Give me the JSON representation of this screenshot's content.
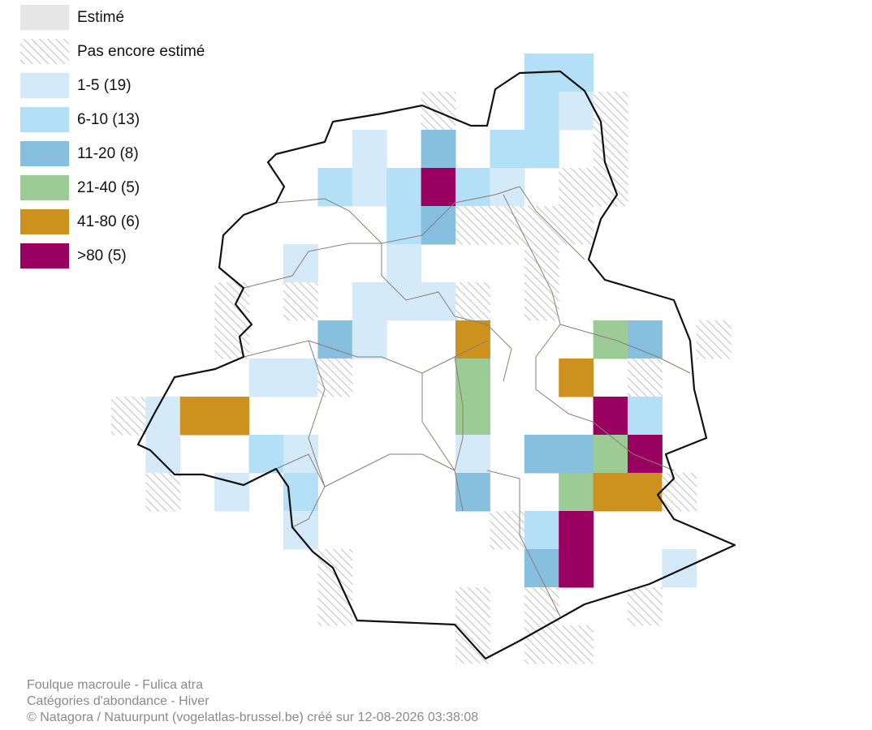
{
  "legend": {
    "items": [
      "Estimé",
      "Pas encore estimé",
      "1-5 (19)",
      "6-10 (13)",
      "11-20 (8)",
      "21-40 (5)",
      "41-80 (6)",
      ">80 (5)"
    ]
  },
  "footer": {
    "lines": [
      "Foulque macroule - Fulica atra",
      "Catégories d'abondance - Hiver",
      "© Natagora / Natuurpunt (vogelatlas-brussel.be) créé sur 12-08-2026 03:38:08"
    ]
  }
}
